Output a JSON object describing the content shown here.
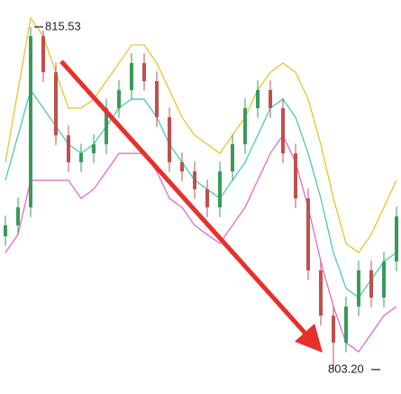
{
  "chart_data": {
    "type": "candlestick",
    "annotations": [
      "815.53",
      "803.20"
    ],
    "categories": [
      null,
      null,
      null,
      null,
      null,
      null,
      null,
      null,
      null,
      null,
      null,
      null,
      null,
      null,
      null,
      null,
      null,
      null,
      null,
      null,
      null,
      null,
      null,
      null,
      null,
      null,
      null,
      null,
      null,
      null,
      null,
      null
    ],
    "open": [
      808.0,
      808.39,
      809.04,
      815.2,
      813.9,
      811.63,
      810.66,
      810.98,
      811.31,
      812.61,
      813.26,
      814.23,
      813.58,
      812.28,
      810.66,
      810.33,
      809.69,
      809.04,
      810.33,
      811.31,
      812.61,
      813.26,
      812.61,
      810.98,
      809.36,
      806.77,
      805.14,
      804.17,
      805.47,
      806.77,
      805.79,
      807.09
    ],
    "high": [
      808.74,
      809.39,
      815.53,
      815.4,
      814.25,
      811.98,
      811.33,
      811.66,
      812.96,
      813.61,
      814.58,
      814.58,
      813.93,
      812.63,
      811.01,
      810.68,
      810.04,
      810.68,
      811.66,
      812.96,
      813.61,
      813.61,
      812.96,
      811.33,
      809.71,
      807.12,
      805.49,
      805.82,
      807.12,
      807.12,
      807.44,
      809.06
    ],
    "low": [
      807.65,
      808.04,
      808.69,
      813.55,
      811.28,
      810.31,
      810.31,
      810.63,
      810.96,
      812.26,
      812.91,
      813.23,
      811.93,
      810.31,
      809.98,
      809.34,
      808.69,
      808.69,
      809.98,
      810.96,
      812.26,
      812.26,
      810.63,
      809.01,
      806.42,
      804.79,
      803.2,
      803.82,
      805.12,
      805.44,
      805.44,
      806.74
    ],
    "close": [
      808.39,
      809.04,
      815.2,
      813.9,
      811.63,
      810.66,
      810.98,
      811.31,
      812.61,
      813.26,
      814.23,
      813.58,
      812.28,
      810.66,
      810.33,
      809.69,
      809.04,
      810.33,
      811.31,
      812.61,
      813.26,
      812.61,
      810.98,
      809.36,
      806.77,
      805.14,
      804.17,
      805.47,
      806.77,
      805.79,
      807.09,
      808.71
    ],
    "up_color": "#3a9a5a",
    "down_color": "#c0504d",
    "series": [
      {
        "color": "#e8c020",
        "values": [
          810.66,
          813.26,
          815.85,
          815.2,
          813.9,
          812.61,
          812.61,
          812.93,
          813.58,
          814.23,
          814.88,
          814.88,
          814.23,
          813.26,
          812.28,
          811.63,
          811.31,
          810.98,
          811.63,
          812.28,
          813.26,
          813.9,
          814.23,
          813.9,
          812.93,
          811.31,
          809.36,
          807.74,
          807.41,
          808.06,
          809.04,
          810.01
        ]
      },
      {
        "color": "#3cc8b0",
        "values": [
          810.01,
          811.63,
          813.26,
          812.61,
          811.96,
          811.31,
          810.98,
          811.31,
          811.96,
          812.61,
          812.93,
          812.93,
          812.28,
          811.31,
          810.66,
          810.01,
          809.69,
          809.36,
          810.01,
          810.66,
          811.63,
          812.61,
          812.93,
          812.28,
          810.98,
          809.36,
          807.41,
          806.12,
          805.79,
          806.44,
          807.09,
          807.41
        ]
      },
      {
        "color": "#e060c8",
        "values": [
          807.41,
          808.06,
          810.01,
          810.01,
          810.01,
          810.01,
          809.36,
          809.69,
          810.33,
          810.98,
          810.98,
          810.98,
          810.33,
          809.36,
          809.04,
          808.39,
          808.06,
          807.74,
          808.39,
          809.04,
          810.01,
          810.98,
          811.63,
          810.66,
          809.04,
          807.09,
          805.47,
          804.17,
          803.84,
          804.49,
          805.14,
          805.47
        ]
      }
    ],
    "ylim": [
      802.32,
      816.5
    ]
  }
}
